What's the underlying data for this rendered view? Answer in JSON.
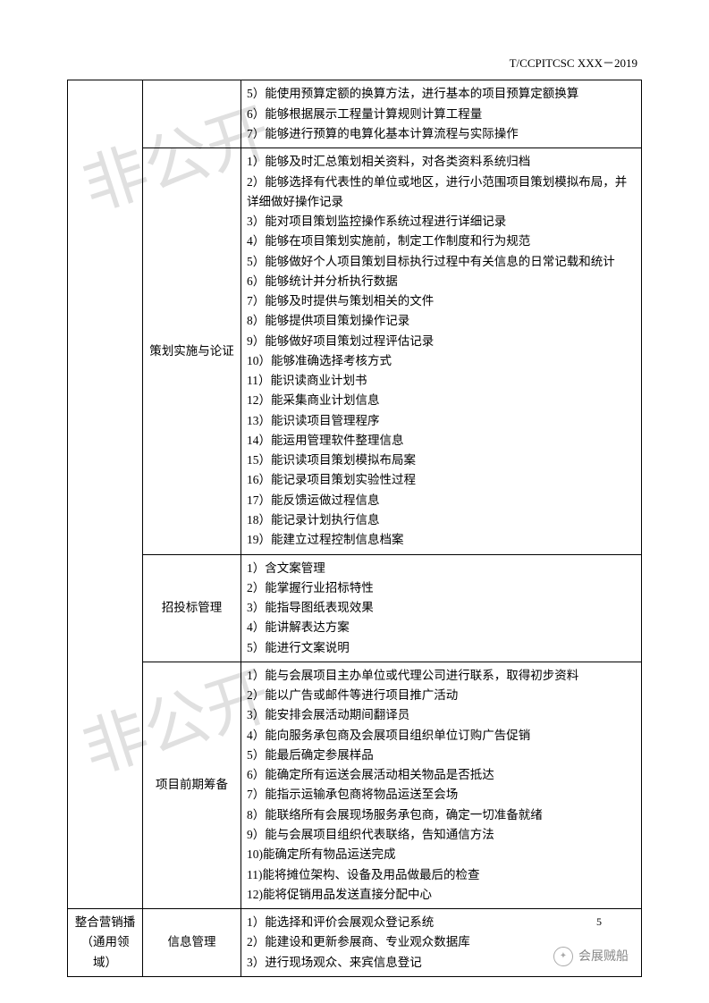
{
  "header": {
    "code": "T/CCPITCSC XXX－2019"
  },
  "watermark": {
    "text": "非公开"
  },
  "table": {
    "rows": [
      {
        "col1": "",
        "col2": "",
        "col3": [
          "5）能使用预算定额的换算方法，进行基本的项目预算定额换算",
          "6）能够根据展示工程量计算规则计算工程量",
          "7）能够进行预算的电算化基本计算流程与实际操作"
        ]
      },
      {
        "col1": "",
        "col2": "策划实施与论证",
        "col3": [
          "1）能够及时汇总策划相关资料，对各类资料系统归档",
          "2）能够选择有代表性的单位或地区，进行小范围项目策划模拟布局，并详细做好操作记录",
          "3）能对项目策划监控操作系统过程进行详细记录",
          "4）能够在项目策划实施前，制定工作制度和行为规范",
          "5）能够做好个人项目策划目标执行过程中有关信息的日常记载和统计",
          "6）能够统计并分析执行数据",
          "7）能够及时提供与策划相关的文件",
          "8）能够提供项目策划操作记录",
          "9）能够做好项目策划过程评估记录",
          "10）能够准确选择考核方式",
          "11）能识读商业计划书",
          "12）能采集商业计划信息",
          "13）能识读项目管理程序",
          "14）能运用管理软件整理信息",
          "15）能识读项目策划模拟布局案",
          "16）能记录项目策划实验性过程",
          "17）能反馈运做过程信息",
          "18）能记录计划执行信息",
          "19）能建立过程控制信息档案"
        ]
      },
      {
        "col1": "",
        "col2": "招投标管理",
        "col3": [
          "1）含文案管理",
          "2）能掌握行业招标特性",
          "3）能指导图纸表现效果",
          "4）能讲解表达方案",
          "5）能进行文案说明"
        ]
      },
      {
        "col1": "",
        "col2": "项目前期筹备",
        "col3": [
          "1）能与会展项目主办单位或代理公司进行联系，取得初步资料",
          "2）能以广告或邮件等进行项目推广活动",
          "3）能安排会展活动期间翻译员",
          "4）能向服务承包商及会展项目组织单位订购广告促销",
          "5）能最后确定参展样品",
          "6）能确定所有运送会展活动相关物品是否抵达",
          "7）能指示运输承包商将物品运送至会场",
          "8）能联络所有会展现场服务承包商，确定一切准备就绪",
          "9）能与会展项目组织代表联络，告知通信方法",
          "10)能确定所有物品运送完成",
          "11)能将摊位架构、设备及用品做最后的检查",
          "12)能将促销用品发送直接分配中心"
        ]
      },
      {
        "col1": "整合营销播（通用领域）",
        "col2": "信息管理",
        "col3": [
          "1）能选择和评价会展观众登记系统",
          "2）能建设和更新参展商、专业观众数据库",
          "3）进行现场观众、来宾信息登记"
        ]
      }
    ]
  },
  "pageNumber": "5",
  "footer": {
    "brand": "会展贼船"
  }
}
